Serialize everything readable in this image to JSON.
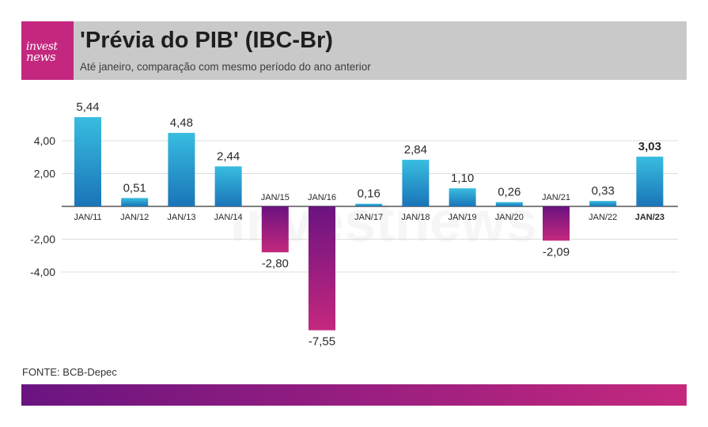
{
  "header": {
    "logo_top": "invest",
    "logo_bottom": "news",
    "title": "'Prévia do PIB' (IBC-Br)",
    "subtitle": "Até janeiro, comparação com mesmo período do ano anterior"
  },
  "watermark": "investnews",
  "source": "FONTE: BCB-Depec",
  "colors": {
    "positive_top": "#38bde0",
    "positive_bottom": "#1a74b8",
    "negative_top": "#6b1380",
    "negative_bottom": "#c4287e",
    "header_bg": "#c9c9c9",
    "logo_bg": "#c4287e"
  },
  "chart_data": {
    "type": "bar",
    "categories": [
      "JAN/11",
      "JAN/12",
      "JAN/13",
      "JAN/14",
      "JAN/15",
      "JAN/16",
      "JAN/17",
      "JAN/18",
      "JAN/19",
      "JAN/20",
      "JAN/21",
      "JAN/22",
      "JAN/23"
    ],
    "values": [
      5.44,
      0.51,
      4.48,
      2.44,
      -2.8,
      -7.55,
      0.16,
      2.84,
      1.1,
      0.26,
      -2.09,
      0.33,
      3.03
    ],
    "value_labels": [
      "5,44",
      "0,51",
      "4,48",
      "2,44",
      "-2,80",
      "-7,55",
      "0,16",
      "2,84",
      "1,10",
      "0,26",
      "-2,09",
      "0,33",
      "3,03"
    ],
    "highlight_index": 12,
    "y_ticks": [
      4,
      2,
      -2,
      -4
    ],
    "y_tick_labels": [
      "4,00",
      "2,00",
      "-2,00",
      "-4,00"
    ],
    "ylim": [
      -8.5,
      6.5
    ],
    "grid": true,
    "legend": "none"
  }
}
